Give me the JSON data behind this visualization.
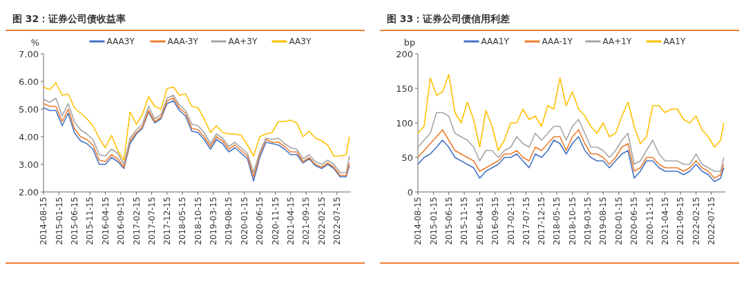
{
  "chart_data": [
    {
      "type": "line",
      "title": "图 32：证券公司债收益率",
      "ylabel": "%",
      "legend": "top",
      "grid": false,
      "x": [
        "2014-08-15",
        "2014-10-15",
        "2014-12-15",
        "2015-02-15",
        "2015-04-15",
        "2015-06-15",
        "2015-08-15",
        "2015-10-15",
        "2015-12-15",
        "2016-02-15",
        "2016-04-15",
        "2016-06-15",
        "2016-08-15",
        "2016-10-15",
        "2016-12-15",
        "2017-02-15",
        "2017-04-15",
        "2017-06-15",
        "2017-08-15",
        "2017-10-15",
        "2017-12-15",
        "2018-02-15",
        "2018-04-15",
        "2018-06-15",
        "2018-08-15",
        "2018-10-15",
        "2018-12-15",
        "2019-02-15",
        "2019-04-15",
        "2019-06-15",
        "2019-08-15",
        "2019-10-15",
        "2019-12-15",
        "2020-02-15",
        "2020-04-15",
        "2020-06-15",
        "2020-08-15",
        "2020-10-15",
        "2020-12-15",
        "2021-02-15",
        "2021-04-15",
        "2021-06-15",
        "2021-08-15",
        "2021-10-15",
        "2021-12-15",
        "2022-02-15",
        "2022-04-15",
        "2022-06-15",
        "2022-08-15",
        "2022-10-15",
        "2022-11-15"
      ],
      "xlim": [
        "2014-08-15",
        "2022-11-30"
      ],
      "xticks": [
        "2014-08-15",
        "2015-01-15",
        "2015-06-15",
        "2015-11-15",
        "2016-04-15",
        "2016-09-15",
        "2017-02-15",
        "2017-07-15",
        "2017-12-15",
        "2018-05-15",
        "2018-10-15",
        "2019-03-15",
        "2019-08-15",
        "2020-01-15",
        "2020-06-15",
        "2020-11-15",
        "2021-04-15",
        "2021-09-15",
        "2022-02-15",
        "2022-07-15"
      ],
      "ylim": [
        2,
        7
      ],
      "yticks": [
        {
          "value": 2,
          "label": "2.00"
        },
        {
          "value": 3,
          "label": "3.00"
        },
        {
          "value": 4,
          "label": "4.00"
        },
        {
          "value": 5,
          "label": "5.00"
        },
        {
          "value": 6,
          "label": "6.00"
        },
        {
          "value": 7,
          "label": "7.00"
        }
      ],
      "series": [
        {
          "name": "AAA3Y",
          "color": "#4472c4",
          "values": [
            5.05,
            4.95,
            4.95,
            4.4,
            4.85,
            4.15,
            3.85,
            3.75,
            3.55,
            3.0,
            3.0,
            3.25,
            3.1,
            2.85,
            3.75,
            4.1,
            4.3,
            4.9,
            4.5,
            4.65,
            5.2,
            5.3,
            4.95,
            4.75,
            4.2,
            4.15,
            3.9,
            3.55,
            3.9,
            3.75,
            3.45,
            3.6,
            3.4,
            3.2,
            2.4,
            3.25,
            3.8,
            3.75,
            3.7,
            3.55,
            3.35,
            3.35,
            3.05,
            3.2,
            2.95,
            2.85,
            3.0,
            2.85,
            2.55,
            2.55,
            2.95
          ]
        },
        {
          "name": "AAA-3Y",
          "color": "#ed7d31",
          "values": [
            5.2,
            5.1,
            5.1,
            4.55,
            5.0,
            4.3,
            4.0,
            3.9,
            3.7,
            3.15,
            3.1,
            3.35,
            3.2,
            2.9,
            3.85,
            4.15,
            4.35,
            4.95,
            4.55,
            4.7,
            5.3,
            5.4,
            5.05,
            4.85,
            4.3,
            4.25,
            4.0,
            3.65,
            4.0,
            3.85,
            3.55,
            3.7,
            3.5,
            3.3,
            2.55,
            3.35,
            3.9,
            3.8,
            3.8,
            3.65,
            3.45,
            3.45,
            3.1,
            3.25,
            3.0,
            2.9,
            3.05,
            2.9,
            2.6,
            2.6,
            3.05
          ]
        },
        {
          "name": "AA+3Y",
          "color": "#a5a5a5",
          "values": [
            5.35,
            5.25,
            5.4,
            4.75,
            5.2,
            4.55,
            4.25,
            4.1,
            3.9,
            3.35,
            3.3,
            3.55,
            3.4,
            3.0,
            3.95,
            4.25,
            4.45,
            5.1,
            4.65,
            4.8,
            5.4,
            5.5,
            5.15,
            4.95,
            4.45,
            4.4,
            4.15,
            3.75,
            4.1,
            3.95,
            3.65,
            3.8,
            3.6,
            3.4,
            2.7,
            3.45,
            3.95,
            3.9,
            3.95,
            3.75,
            3.6,
            3.55,
            3.2,
            3.35,
            3.1,
            3.0,
            3.15,
            3.0,
            2.7,
            2.7,
            3.3
          ]
        },
        {
          "name": "AA3Y",
          "color": "#ffc000",
          "values": [
            5.8,
            5.7,
            5.95,
            5.5,
            5.55,
            5.05,
            4.85,
            4.65,
            4.4,
            3.95,
            3.6,
            4.05,
            3.5,
            3.15,
            4.9,
            4.45,
            4.8,
            5.45,
            5.1,
            5.0,
            5.75,
            5.8,
            5.5,
            5.55,
            5.1,
            5.05,
            4.65,
            4.15,
            4.4,
            4.15,
            4.1,
            4.1,
            4.05,
            3.7,
            3.3,
            4.0,
            4.1,
            4.15,
            4.55,
            4.55,
            4.6,
            4.5,
            4.0,
            4.2,
            3.95,
            3.85,
            3.7,
            3.3,
            3.3,
            3.35,
            4.0
          ]
        }
      ]
    },
    {
      "type": "line",
      "title": "图 33：证券公司债信用利差",
      "ylabel": "bp",
      "legend": "top",
      "grid": false,
      "x": [
        "2014-08-15",
        "2014-10-15",
        "2014-12-15",
        "2015-02-15",
        "2015-04-15",
        "2015-06-15",
        "2015-08-15",
        "2015-10-15",
        "2015-12-15",
        "2016-02-15",
        "2016-04-15",
        "2016-06-15",
        "2016-08-15",
        "2016-10-15",
        "2016-12-15",
        "2017-02-15",
        "2017-04-15",
        "2017-06-15",
        "2017-08-15",
        "2017-10-15",
        "2017-12-15",
        "2018-02-15",
        "2018-04-15",
        "2018-06-15",
        "2018-08-15",
        "2018-10-15",
        "2018-12-15",
        "2019-02-15",
        "2019-04-15",
        "2019-06-15",
        "2019-08-15",
        "2019-10-15",
        "2019-12-15",
        "2020-02-15",
        "2020-04-15",
        "2020-06-15",
        "2020-08-15",
        "2020-10-15",
        "2020-12-15",
        "2021-02-15",
        "2021-04-15",
        "2021-06-15",
        "2021-08-15",
        "2021-10-15",
        "2021-12-15",
        "2022-02-15",
        "2022-04-15",
        "2022-06-15",
        "2022-08-15",
        "2022-10-15",
        "2022-11-15"
      ],
      "xlim": [
        "2014-08-15",
        "2022-11-30"
      ],
      "xticks": [
        "2014-08-15",
        "2015-01-15",
        "2015-06-15",
        "2015-11-15",
        "2016-04-15",
        "2016-09-15",
        "2017-02-15",
        "2017-07-15",
        "2017-12-15",
        "2018-05-15",
        "2018-10-15",
        "2019-03-15",
        "2019-08-15",
        "2020-01-15",
        "2020-06-15",
        "2020-11-15",
        "2021-04-15",
        "2021-09-15",
        "2022-02-15",
        "2022-07-15"
      ],
      "ylim": [
        0,
        200
      ],
      "yticks": [
        0,
        50,
        100,
        150,
        200
      ],
      "series": [
        {
          "name": "AAA1Y",
          "color": "#4472c4",
          "values": [
            40,
            50,
            55,
            65,
            75,
            65,
            50,
            45,
            40,
            35,
            20,
            30,
            35,
            40,
            50,
            50,
            55,
            45,
            35,
            55,
            50,
            60,
            75,
            70,
            55,
            70,
            80,
            60,
            50,
            45,
            45,
            35,
            45,
            55,
            60,
            20,
            30,
            45,
            45,
            35,
            30,
            30,
            30,
            25,
            30,
            40,
            30,
            25,
            15,
            20,
            35
          ]
        },
        {
          "name": "AAA-1Y",
          "color": "#ed7d31",
          "values": [
            50,
            60,
            70,
            80,
            90,
            75,
            60,
            55,
            50,
            45,
            30,
            35,
            40,
            45,
            55,
            55,
            60,
            50,
            45,
            65,
            60,
            70,
            80,
            80,
            60,
            80,
            90,
            70,
            55,
            55,
            50,
            40,
            50,
            65,
            70,
            30,
            35,
            50,
            50,
            40,
            35,
            35,
            35,
            30,
            35,
            45,
            35,
            30,
            20,
            25,
            40
          ]
        },
        {
          "name": "AA+1Y",
          "color": "#a5a5a5",
          "values": [
            65,
            75,
            85,
            115,
            115,
            110,
            85,
            80,
            75,
            65,
            45,
            60,
            60,
            50,
            60,
            65,
            80,
            70,
            65,
            85,
            75,
            85,
            95,
            95,
            75,
            95,
            105,
            85,
            65,
            65,
            60,
            50,
            60,
            75,
            85,
            40,
            45,
            60,
            75,
            55,
            45,
            45,
            45,
            40,
            40,
            55,
            40,
            35,
            30,
            30,
            50
          ]
        },
        {
          "name": "AA1Y",
          "color": "#ffc000",
          "values": [
            85,
            95,
            165,
            140,
            145,
            170,
            115,
            100,
            130,
            105,
            65,
            118,
            95,
            60,
            75,
            100,
            100,
            120,
            105,
            110,
            95,
            125,
            120,
            165,
            125,
            145,
            120,
            110,
            95,
            85,
            100,
            80,
            85,
            110,
            130,
            95,
            70,
            80,
            125,
            125,
            115,
            120,
            120,
            105,
            100,
            110,
            90,
            80,
            65,
            75,
            100
          ]
        }
      ]
    }
  ]
}
